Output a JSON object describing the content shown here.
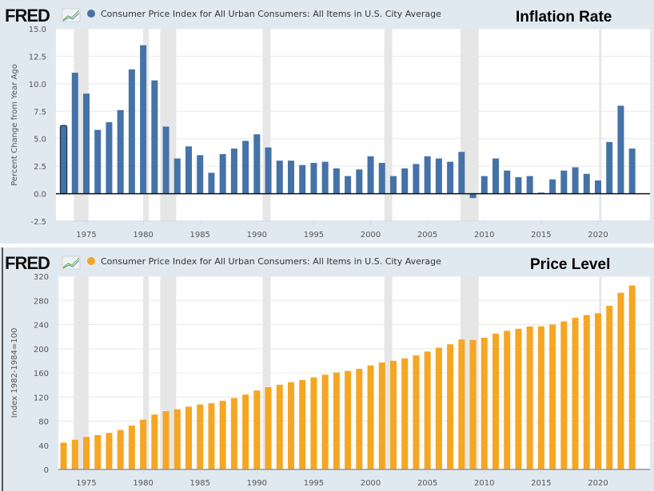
{
  "chart_data": [
    {
      "type": "bar",
      "logo": "FRED",
      "series_title": "Consumer Price Index for All Urban Consumers: All Items in U.S. City Average",
      "annotation": "Inflation Rate",
      "ylabel": "Percent Change from Year Ago",
      "ylim": [
        -2.5,
        15.0
      ],
      "yticks": [
        "15.0",
        "12.5",
        "10.0",
        "7.5",
        "5.0",
        "2.5",
        "0.0",
        "-2.5"
      ],
      "ytick_values": [
        15.0,
        12.5,
        10.0,
        7.5,
        5.0,
        2.5,
        0.0,
        -2.5
      ],
      "xticks": [
        "1975",
        "1980",
        "1985",
        "1990",
        "1995",
        "2000",
        "2005",
        "2010",
        "2015",
        "2020"
      ],
      "color": "#4572a7",
      "highlighted_year": 1973,
      "grid": true,
      "x": [
        1973,
        1974,
        1975,
        1976,
        1977,
        1978,
        1979,
        1980,
        1981,
        1982,
        1983,
        1984,
        1985,
        1986,
        1987,
        1988,
        1989,
        1990,
        1991,
        1992,
        1993,
        1994,
        1995,
        1996,
        1997,
        1998,
        1999,
        2000,
        2001,
        2002,
        2003,
        2004,
        2005,
        2006,
        2007,
        2008,
        2009,
        2010,
        2011,
        2012,
        2013,
        2014,
        2015,
        2016,
        2017,
        2018,
        2019,
        2020,
        2021,
        2022,
        2023
      ],
      "values": [
        6.2,
        11.0,
        9.1,
        5.8,
        6.5,
        7.6,
        11.3,
        13.5,
        10.3,
        6.1,
        3.2,
        4.3,
        3.5,
        1.9,
        3.6,
        4.1,
        4.8,
        5.4,
        4.2,
        3.0,
        3.0,
        2.6,
        2.8,
        2.9,
        2.3,
        1.6,
        2.2,
        3.4,
        2.8,
        1.6,
        2.3,
        2.7,
        3.4,
        3.2,
        2.9,
        3.8,
        -0.4,
        1.6,
        3.2,
        2.1,
        1.5,
        1.6,
        0.1,
        1.3,
        2.1,
        2.4,
        1.8,
        1.2,
        4.7,
        8.0,
        4.1
      ]
    },
    {
      "type": "bar",
      "logo": "FRED",
      "series_title": "Consumer Price Index for All Urban Consumers: All Items in U.S. City Average",
      "annotation": "Price Level",
      "ylabel": "Index 1982-1984=100",
      "ylim": [
        0,
        320
      ],
      "yticks": [
        "320",
        "280",
        "240",
        "200",
        "160",
        "120",
        "80",
        "40",
        "0"
      ],
      "ytick_values": [
        320,
        280,
        240,
        200,
        160,
        120,
        80,
        40,
        0
      ],
      "xticks": [
        "1975",
        "1980",
        "1985",
        "1990",
        "1995",
        "2000",
        "2005",
        "2010",
        "2015",
        "2020"
      ],
      "color": "#f5a623",
      "grid": true,
      "x": [
        1973,
        1974,
        1975,
        1976,
        1977,
        1978,
        1979,
        1980,
        1981,
        1982,
        1983,
        1984,
        1985,
        1986,
        1987,
        1988,
        1989,
        1990,
        1991,
        1992,
        1993,
        1994,
        1995,
        1996,
        1997,
        1998,
        1999,
        2000,
        2001,
        2002,
        2003,
        2004,
        2005,
        2006,
        2007,
        2008,
        2009,
        2010,
        2011,
        2012,
        2013,
        2014,
        2015,
        2016,
        2017,
        2018,
        2019,
        2020,
        2021,
        2022,
        2023
      ],
      "values": [
        44.4,
        49.3,
        53.8,
        56.9,
        60.6,
        65.2,
        72.6,
        82.4,
        90.9,
        96.5,
        99.6,
        103.9,
        107.6,
        109.6,
        113.6,
        118.3,
        124.0,
        130.7,
        136.2,
        140.3,
        144.5,
        148.2,
        152.4,
        156.9,
        160.5,
        163.0,
        166.6,
        172.2,
        177.1,
        179.9,
        184.0,
        188.9,
        195.3,
        201.6,
        207.3,
        215.3,
        214.5,
        218.1,
        224.9,
        229.6,
        233.0,
        236.7,
        237.0,
        240.0,
        245.1,
        251.1,
        255.7,
        258.8,
        271.0,
        292.7,
        304.7
      ]
    }
  ],
  "recessions": [
    [
      1973.9,
      1975.2
    ],
    [
      1980.0,
      1980.5
    ],
    [
      1981.5,
      1982.9
    ],
    [
      1990.5,
      1991.2
    ],
    [
      2001.2,
      2001.9
    ],
    [
      2007.9,
      2009.5
    ],
    [
      2020.1,
      2020.3
    ]
  ],
  "colors": {
    "panel_bg": "#e1e9f0",
    "recession": "#e6e6e6",
    "axis": "#111111"
  }
}
